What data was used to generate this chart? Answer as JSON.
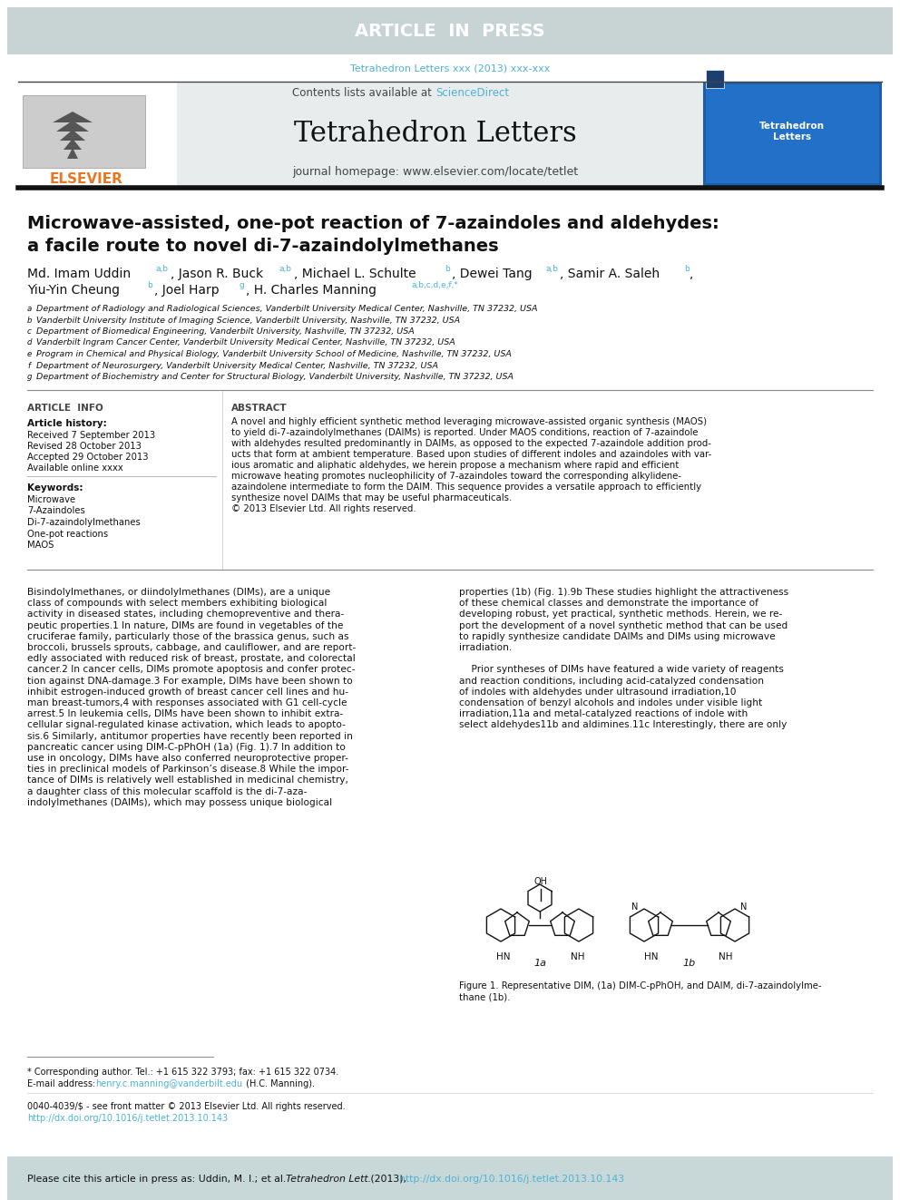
{
  "article_in_press_bg": "#c8d4d4",
  "article_in_press_text": "ARTICLE  IN  PRESS",
  "article_in_press_text_color": "#ffffff",
  "journal_ref_text": "Tetrahedron Letters xxx (2013) xxx-xxx",
  "journal_ref_color": "#4db3d4",
  "header_bg": "#e8ecec",
  "journal_title": "Tetrahedron Letters",
  "journal_homepage": "journal homepage: www.elsevier.com/locate/tetlet",
  "contents_text": "Contents lists available at ",
  "sciencedirect_text": "ScienceDirect",
  "sciencedirect_color": "#4db3d4",
  "elsevier_color": "#e87722",
  "paper_title_line1": "Microwave-assisted, one-pot reaction of 7-azaindoles and aldehydes:",
  "paper_title_line2": "a facile route to novel di-7-azaindolylmethanes",
  "article_info_title": "ARTICLE  INFO",
  "article_history_title": "Article history:",
  "received": "Received 7 September 2013",
  "revised": "Revised 28 October 2013",
  "accepted": "Accepted 29 October 2013",
  "available": "Available online xxxx",
  "keywords_title": "Keywords:",
  "keywords": [
    "Microwave",
    "7-Azaindoles",
    "Di-7-azaindolylmethanes",
    "One-pot reactions",
    "MAOS"
  ],
  "abstract_title": "ABSTRACT",
  "abstract_lines": [
    "A novel and highly efficient synthetic method leveraging microwave-assisted organic synthesis (MAOS)",
    "to yield di-7-azaindolylmethanes (DAIMs) is reported. Under MAOS conditions, reaction of 7-azaindole",
    "with aldehydes resulted predominantly in DAIMs, as opposed to the expected 7-azaindole addition prod-",
    "ucts that form at ambient temperature. Based upon studies of different indoles and azaindoles with var-",
    "ious aromatic and aliphatic aldehydes, we herein propose a mechanism where rapid and efficient",
    "microwave heating promotes nucleophilicity of 7-azaindoles toward the corresponding alkylidene-",
    "azaindolene intermediate to form the DAIM. This sequence provides a versatile approach to efficiently",
    "synthesize novel DAIMs that may be useful pharmaceuticals.",
    "© 2013 Elsevier Ltd. All rights reserved."
  ],
  "col1_lines": [
    "Bisindolylmethanes, or diindolylmethanes (DIMs), are a unique",
    "class of compounds with select members exhibiting biological",
    "activity in diseased states, including chemopreventive and thera-",
    "peutic properties.1 In nature, DIMs are found in vegetables of the",
    "cruciferae family, particularly those of the brassica genus, such as",
    "broccoli, brussels sprouts, cabbage, and cauliflower, and are report-",
    "edly associated with reduced risk of breast, prostate, and colorectal",
    "cancer.2 In cancer cells, DIMs promote apoptosis and confer protec-",
    "tion against DNA-damage.3 For example, DIMs have been shown to",
    "inhibit estrogen-induced growth of breast cancer cell lines and hu-",
    "man breast-tumors,4 with responses associated with G1 cell-cycle",
    "arrest.5 In leukemia cells, DIMs have been shown to inhibit extra-",
    "cellular signal-regulated kinase activation, which leads to apopto-",
    "sis.6 Similarly, antitumor properties have recently been reported in",
    "pancreatic cancer using DIM-C-pPhOH (1a) (Fig. 1).7 In addition to",
    "use in oncology, DIMs have also conferred neuroprotective proper-",
    "ties in preclinical models of Parkinson’s disease.8 While the impor-",
    "tance of DIMs is relatively well established in medicinal chemistry,",
    "a daughter class of this molecular scaffold is the di-7-aza-",
    "indolylmethanes (DAIMs), which may possess unique biological"
  ],
  "col2_lines": [
    "properties (1b) (Fig. 1).9b These studies highlight the attractiveness",
    "of these chemical classes and demonstrate the importance of",
    "developing robust, yet practical, synthetic methods. Herein, we re-",
    "port the development of a novel synthetic method that can be used",
    "to rapidly synthesize candidate DAIMs and DIMs using microwave",
    "irradiation.",
    "",
    "    Prior syntheses of DIMs have featured a wide variety of reagents",
    "and reaction conditions, including acid-catalyzed condensation",
    "of indoles with aldehydes under ultrasound irradiation,10",
    "condensation of benzyl alcohols and indoles under visible light",
    "irradiation,11a and metal-catalyzed reactions of indole with",
    "select aldehydes11b and aldimines.11c Interestingly, there are only"
  ],
  "figure_caption_line1": "Figure 1. Representative DIM, (1a) DIM-C-pPhOH, and DAIM, di-7-azaindolylme-",
  "figure_caption_line2": "thane (1b).",
  "footnote_star": "* Corresponding author. Tel.: +1 615 322 3793; fax: +1 615 322 0734.",
  "footnote_email_label": "E-mail address: ",
  "footnote_email_link": "henry.c.manning@vanderbilt.edu",
  "footnote_email_suffix": " (H.C. Manning).",
  "footnote_issn": "0040-4039/$ - see front matter © 2013 Elsevier Ltd. All rights reserved.",
  "footnote_doi": "http://dx.doi.org/10.1016/j.tetlet.2013.10.143",
  "cite_text_plain": "Please cite this article in press as: Uddin, M. I.; et al. ",
  "cite_text_italic": "Tetrahedron Lett.",
  "cite_text_rest": " (2013), ",
  "cite_text_doi": "http://dx.doi.org/10.1016/j.tetlet.2013.10.143",
  "cite_bar_color": "#c8d8d8",
  "bg_color": "#ffffff",
  "affiliations": [
    [
      "a",
      "Department of Radiology and Radiological Sciences, Vanderbilt University Medical Center, Nashville, TN 37232, USA"
    ],
    [
      "b",
      "Vanderbilt University Institute of Imaging Science, Vanderbilt University, Nashville, TN 37232, USA"
    ],
    [
      "c",
      "Department of Biomedical Engineering, Vanderbilt University, Nashville, TN 37232, USA"
    ],
    [
      "d",
      "Vanderbilt Ingram Cancer Center, Vanderbilt University Medical Center, Nashville, TN 37232, USA"
    ],
    [
      "e",
      "Program in Chemical and Physical Biology, Vanderbilt University School of Medicine, Nashville, TN 37232, USA"
    ],
    [
      "f",
      "Department of Neurosurgery, Vanderbilt University Medical Center, Nashville, TN 37232, USA"
    ],
    [
      "g",
      "Department of Biochemistry and Center for Structural Biology, Vanderbilt University, Nashville, TN 37232, USA"
    ]
  ]
}
